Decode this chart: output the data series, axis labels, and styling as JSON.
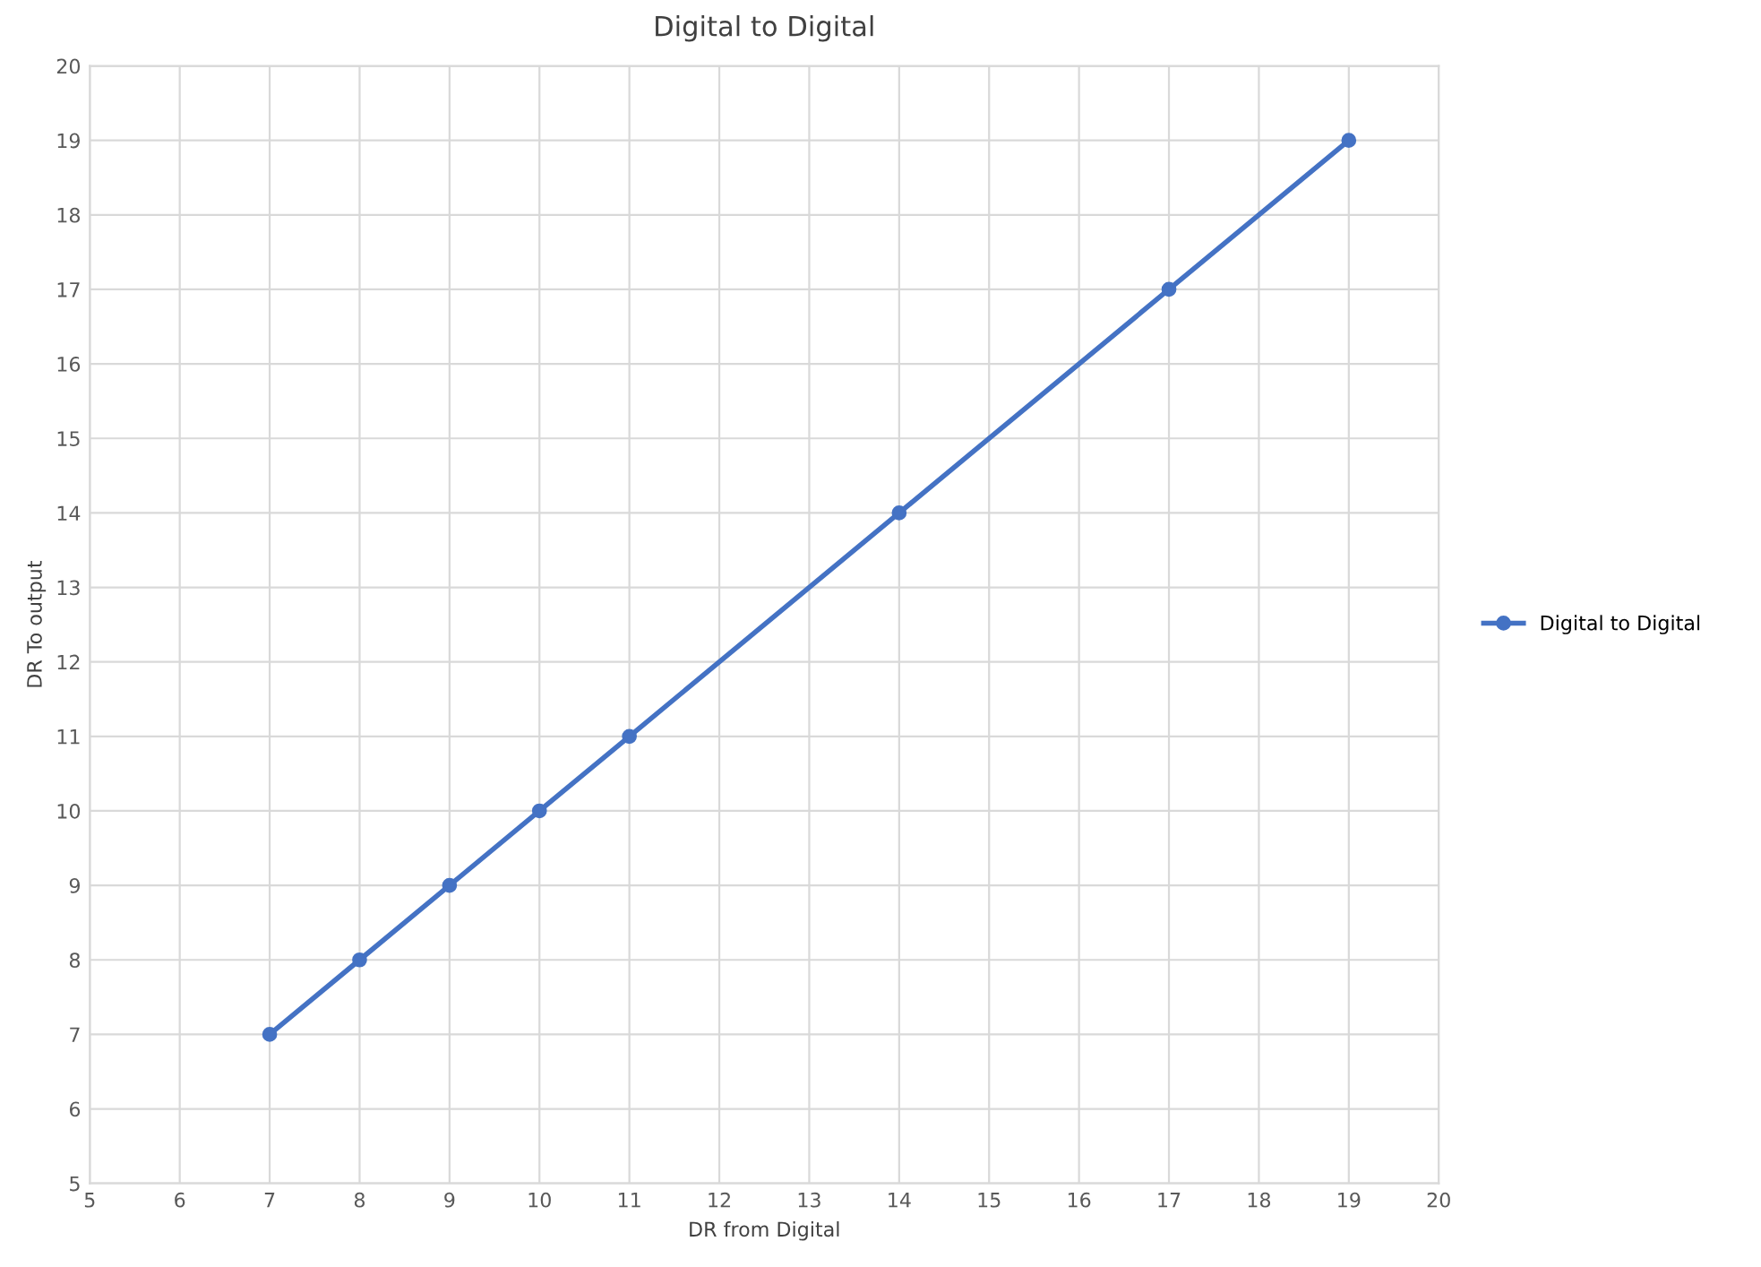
{
  "chart_data": {
    "type": "line",
    "title": "Digital to Digital",
    "xlabel": "DR from Digital",
    "ylabel": "DR To output",
    "series": [
      {
        "name": "Digital to Digital",
        "color": "#4472c4",
        "x": [
          7,
          8,
          9,
          10,
          11,
          14,
          17,
          19
        ],
        "values": [
          7,
          8,
          9,
          10,
          11,
          14,
          17,
          19
        ]
      }
    ],
    "xlim": [
      5,
      20
    ],
    "xticks": [
      5,
      6,
      7,
      8,
      9,
      10,
      11,
      12,
      13,
      14,
      15,
      16,
      17,
      18,
      19,
      20
    ],
    "ylim": [
      5,
      20
    ],
    "yticks": [
      5,
      6,
      7,
      8,
      9,
      10,
      11,
      12,
      13,
      14,
      15,
      16,
      17,
      18,
      19,
      20
    ],
    "grid": true,
    "legend": "right",
    "marker": "circle",
    "line_style": "solid"
  }
}
